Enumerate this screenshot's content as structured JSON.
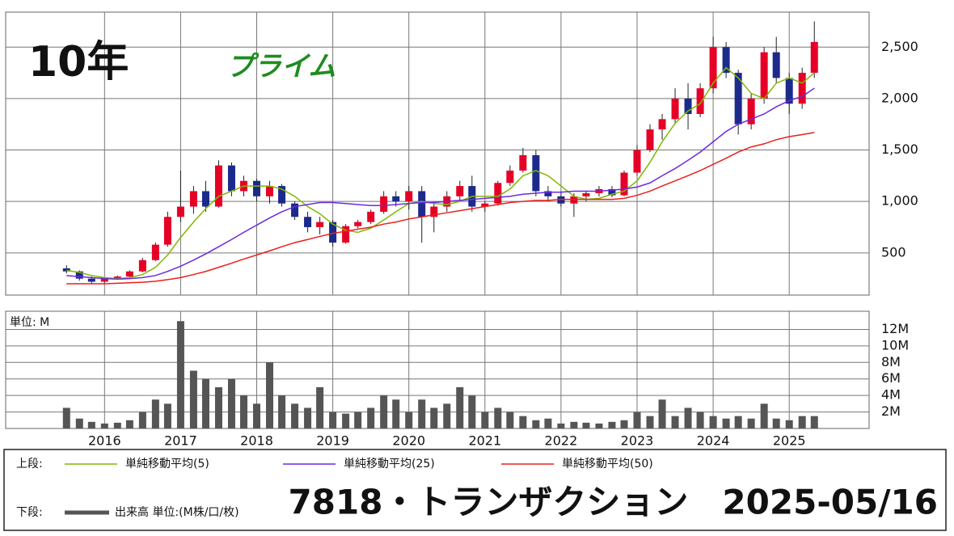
{
  "chart_data": {
    "type": "candlestick",
    "title": "7818・トランザクション　2025-05/16",
    "period_label": "10年",
    "market_label": "プライム",
    "upper_label": "上段:",
    "lower_label": "下段:",
    "volume_unit_label": "単位: M",
    "volume_legend": "出来高 単位:(M株/口/枚)",
    "up_color": "#e60026",
    "down_color": "#1c2a8c",
    "volume_color": "#555555",
    "grid": true,
    "xlim": [
      2014.7,
      2026.05
    ],
    "xticks": [
      2016,
      2017,
      2018,
      2019,
      2020,
      2021,
      2022,
      2023,
      2024,
      2025
    ],
    "ylim": [
      90,
      2840
    ],
    "yticks": [
      500,
      {
        "value": 1000,
        "label": "1,000"
      },
      {
        "value": 1500,
        "label": "1,500"
      },
      {
        "value": 2000,
        "label": "2,000"
      },
      {
        "value": 2500,
        "label": "2,500"
      }
    ],
    "volume_ylim": [
      0,
      14.2
    ],
    "volume_yticks": [
      {
        "value": 2,
        "label": "2M"
      },
      {
        "value": 4,
        "label": "4M"
      },
      {
        "value": 6,
        "label": "6M"
      },
      {
        "value": 8,
        "label": "8M"
      },
      {
        "value": 10,
        "label": "10M"
      },
      {
        "value": 12,
        "label": "12M"
      }
    ],
    "x": [
      2015.5,
      2015.67,
      2015.83,
      2016.0,
      2016.17,
      2016.33,
      2016.5,
      2016.67,
      2016.83,
      2017.0,
      2017.17,
      2017.33,
      2017.5,
      2017.67,
      2017.83,
      2018.0,
      2018.17,
      2018.33,
      2018.5,
      2018.67,
      2018.83,
      2019.0,
      2019.17,
      2019.33,
      2019.5,
      2019.67,
      2019.83,
      2020.0,
      2020.17,
      2020.33,
      2020.5,
      2020.67,
      2020.83,
      2021.0,
      2021.17,
      2021.33,
      2021.5,
      2021.67,
      2021.83,
      2022.0,
      2022.17,
      2022.33,
      2022.5,
      2022.67,
      2022.83,
      2023.0,
      2023.17,
      2023.33,
      2023.5,
      2023.67,
      2023.83,
      2024.0,
      2024.17,
      2024.33,
      2024.5,
      2024.67,
      2024.83,
      2025.0,
      2025.17,
      2025.33
    ],
    "open": [
      350,
      320,
      250,
      220,
      250,
      270,
      320,
      430,
      580,
      850,
      950,
      1100,
      950,
      1350,
      1100,
      1200,
      1050,
      1150,
      980,
      850,
      750,
      800,
      600,
      760,
      800,
      900,
      1050,
      1000,
      1100,
      850,
      950,
      1050,
      1150,
      950,
      980,
      1180,
      1300,
      1450,
      1100,
      1050,
      980,
      1050,
      1080,
      1120,
      1060,
      1280,
      1500,
      1700,
      1800,
      2000,
      1850,
      2100,
      2500,
      2250,
      1750,
      2000,
      2450,
      2200,
      1950,
      2250
    ],
    "high": [
      380,
      330,
      270,
      260,
      280,
      330,
      450,
      600,
      900,
      1300,
      1150,
      1200,
      1400,
      1380,
      1250,
      1220,
      1200,
      1170,
      1000,
      900,
      850,
      820,
      780,
      820,
      920,
      1100,
      1100,
      1150,
      1150,
      1000,
      1100,
      1200,
      1250,
      1000,
      1200,
      1350,
      1520,
      1500,
      1150,
      1100,
      1080,
      1100,
      1150,
      1150,
      1300,
      1550,
      1750,
      1850,
      2100,
      2150,
      2150,
      2600,
      2550,
      2280,
      2050,
      2500,
      2600,
      2250,
      2300,
      2750
    ],
    "low": [
      300,
      230,
      200,
      210,
      240,
      260,
      310,
      420,
      560,
      800,
      880,
      900,
      940,
      1050,
      1050,
      1000,
      980,
      950,
      820,
      700,
      680,
      560,
      590,
      740,
      780,
      880,
      950,
      920,
      600,
      700,
      900,
      1000,
      900,
      900,
      960,
      1150,
      1280,
      1050,
      1000,
      950,
      850,
      1000,
      1050,
      1040,
      1050,
      1250,
      1480,
      1600,
      1750,
      1700,
      1820,
      2050,
      2200,
      1650,
      1700,
      1950,
      2150,
      1850,
      1900,
      2200
    ],
    "close": [
      320,
      250,
      220,
      250,
      270,
      320,
      430,
      580,
      850,
      950,
      1100,
      950,
      1350,
      1100,
      1200,
      1050,
      1150,
      980,
      850,
      750,
      800,
      600,
      760,
      800,
      900,
      1050,
      1000,
      1100,
      850,
      950,
      1050,
      1150,
      950,
      980,
      1180,
      1300,
      1450,
      1100,
      1050,
      980,
      1050,
      1080,
      1120,
      1060,
      1280,
      1500,
      1700,
      1800,
      2000,
      1850,
      2100,
      2500,
      2250,
      1750,
      2000,
      2450,
      2200,
      1950,
      2250,
      2550
    ],
    "volume": [
      2.5,
      1.2,
      0.8,
      0.6,
      0.7,
      1.0,
      2.0,
      3.5,
      3.0,
      13.0,
      7.0,
      6.0,
      5.0,
      6.0,
      4.0,
      3.0,
      8.0,
      4.0,
      3.0,
      2.5,
      5.0,
      2.0,
      1.8,
      2.0,
      2.5,
      4.0,
      3.5,
      2.0,
      3.5,
      2.5,
      3.0,
      5.0,
      4.0,
      2.0,
      2.5,
      2.0,
      1.5,
      1.0,
      1.2,
      0.6,
      0.8,
      0.7,
      0.6,
      0.8,
      1.0,
      2.0,
      1.5,
      3.5,
      1.5,
      2.5,
      2.0,
      1.5,
      1.2,
      1.5,
      1.2,
      3.0,
      1.2,
      1.0,
      1.5,
      1.5
    ],
    "series": [
      {
        "name": "単純移動平均(5)",
        "color": "#7fb800",
        "values": [
          330,
          310,
          280,
          260,
          250,
          260,
          290,
          360,
          480,
          650,
          800,
          930,
          1050,
          1100,
          1150,
          1150,
          1150,
          1120,
          1050,
          950,
          880,
          780,
          720,
          700,
          740,
          820,
          900,
          980,
          1000,
          980,
          970,
          1000,
          1050,
          1050,
          1050,
          1120,
          1250,
          1300,
          1250,
          1150,
          1050,
          1020,
          1030,
          1070,
          1100,
          1200,
          1380,
          1580,
          1760,
          1880,
          1950,
          2150,
          2300,
          2200,
          2050,
          2000,
          2150,
          2200,
          2150,
          2250
        ]
      },
      {
        "name": "単純移動平均(25)",
        "color": "#6a2ae0",
        "values": [
          280,
          270,
          260,
          250,
          245,
          250,
          260,
          280,
          320,
          370,
          430,
          490,
          560,
          630,
          700,
          770,
          840,
          900,
          950,
          970,
          990,
          990,
          980,
          970,
          960,
          960,
          970,
          980,
          990,
          990,
          1000,
          1010,
          1020,
          1030,
          1040,
          1050,
          1070,
          1080,
          1090,
          1090,
          1100,
          1100,
          1100,
          1110,
          1120,
          1140,
          1180,
          1250,
          1320,
          1400,
          1480,
          1580,
          1680,
          1750,
          1800,
          1850,
          1920,
          1980,
          2020,
          2100
        ]
      },
      {
        "name": "単純移動平均(50)",
        "color": "#e8201c",
        "values": [
          200,
          200,
          200,
          200,
          205,
          210,
          215,
          225,
          240,
          260,
          290,
          320,
          360,
          400,
          440,
          480,
          520,
          560,
          600,
          630,
          660,
          690,
          710,
          730,
          750,
          780,
          800,
          830,
          850,
          870,
          890,
          910,
          930,
          950,
          970,
          990,
          1000,
          1010,
          1010,
          1020,
          1020,
          1020,
          1020,
          1020,
          1030,
          1060,
          1100,
          1150,
          1200,
          1250,
          1300,
          1360,
          1420,
          1480,
          1530,
          1560,
          1600,
          1630,
          1650,
          1670
        ]
      }
    ]
  }
}
